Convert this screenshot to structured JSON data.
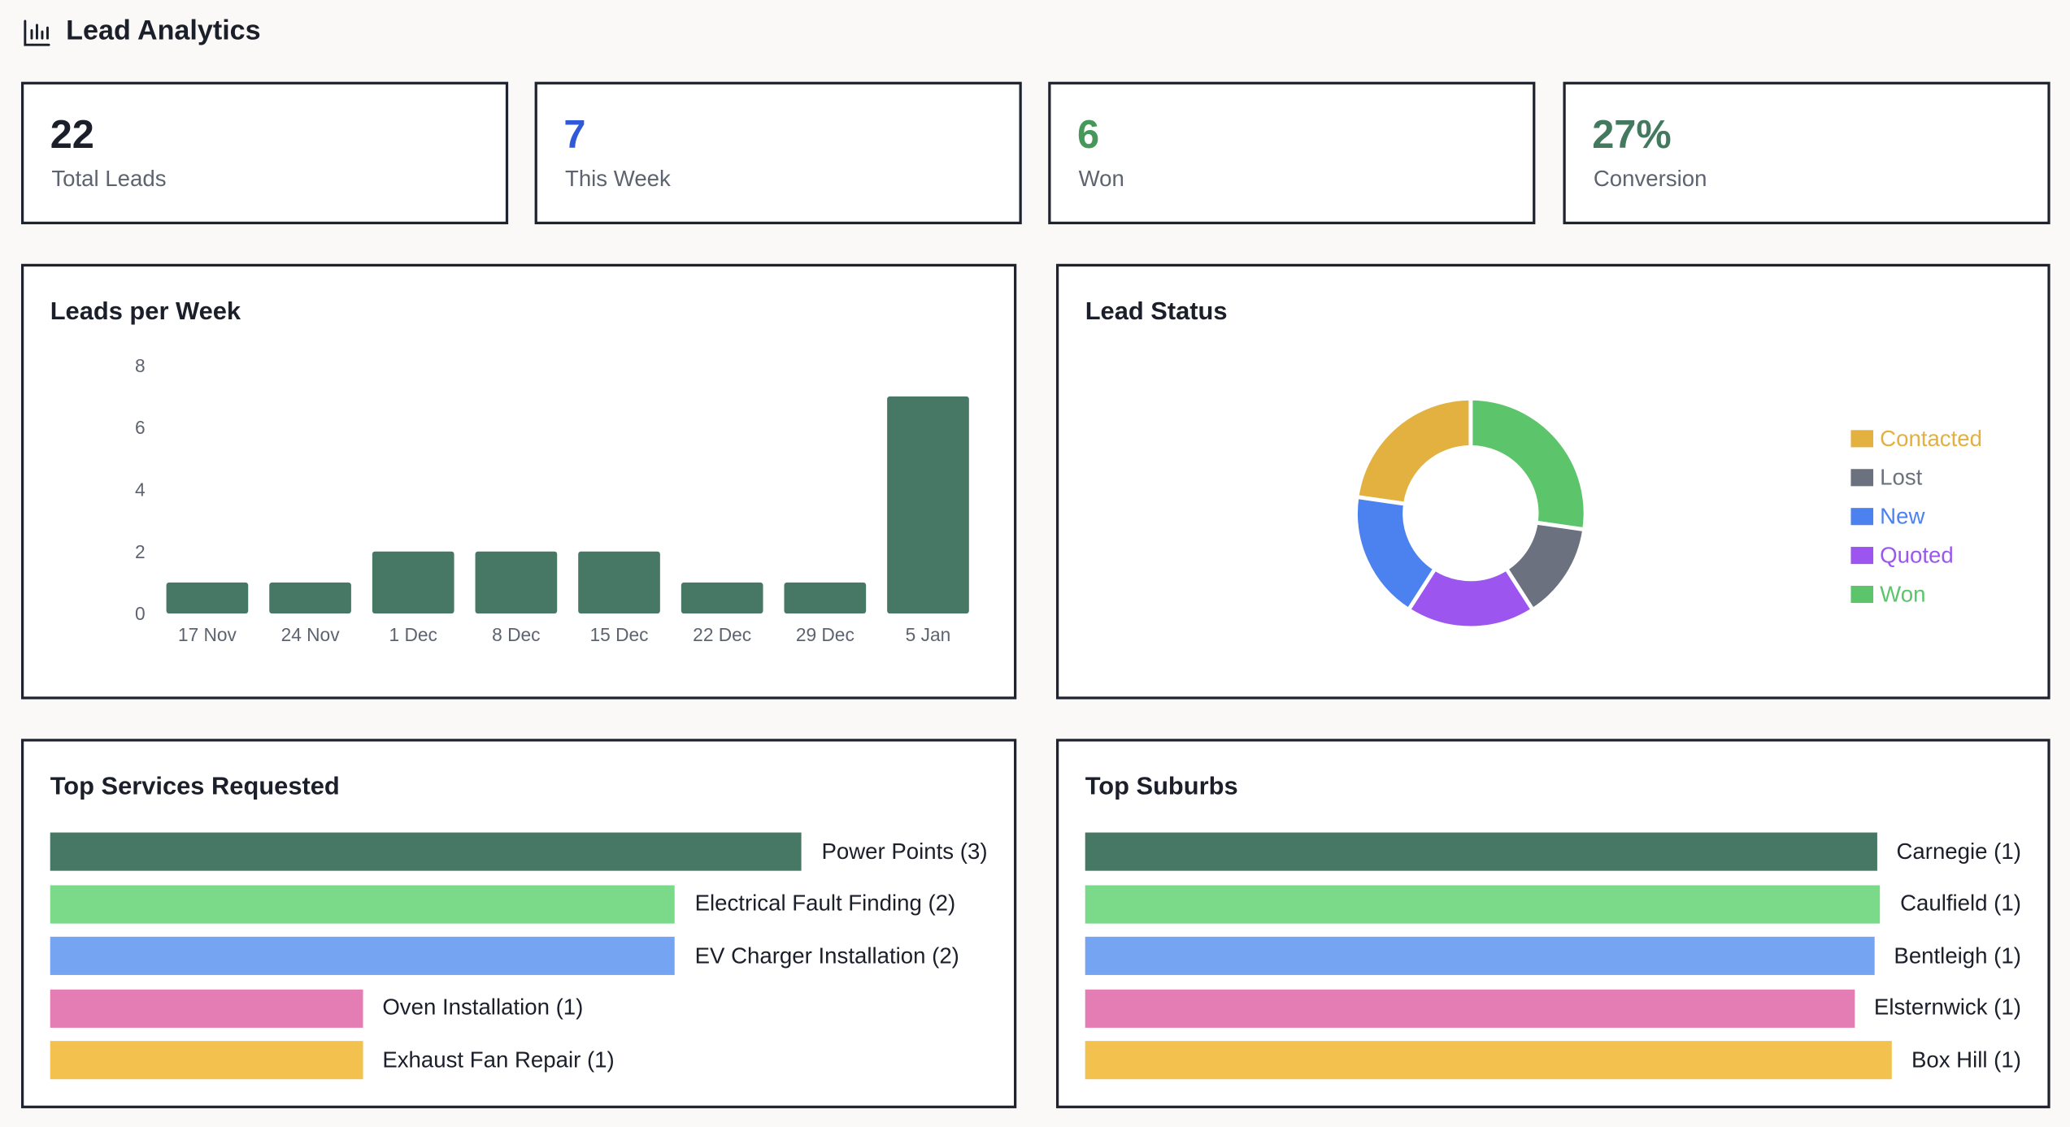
{
  "header": {
    "title": "Lead Analytics"
  },
  "stats": [
    {
      "value": "22",
      "label": "Total Leads",
      "color": "#1b1f2a"
    },
    {
      "value": "7",
      "label": "This Week",
      "color": "#3158d8"
    },
    {
      "value": "6",
      "label": "Won",
      "color": "#45985a"
    },
    {
      "value": "27%",
      "label": "Conversion",
      "color": "#437a5f"
    }
  ],
  "chart_data": [
    {
      "type": "bar",
      "title": "Leads per Week",
      "categories": [
        "17 Nov",
        "24 Nov",
        "1 Dec",
        "8 Dec",
        "15 Dec",
        "22 Dec",
        "29 Dec",
        "5 Jan"
      ],
      "values": [
        1,
        1,
        2,
        2,
        2,
        1,
        1,
        7
      ],
      "color": "#477865",
      "ylim": [
        0,
        8
      ],
      "yticks": [
        0,
        2,
        4,
        6,
        8
      ],
      "grid": false
    },
    {
      "type": "donut",
      "title": "Lead Status",
      "categories": [
        "Contacted",
        "Lost",
        "New",
        "Quoted",
        "Won"
      ],
      "values": [
        5,
        3,
        4,
        4,
        6
      ],
      "colors": [
        "#e2b13f",
        "#6b717e",
        "#4b82f0",
        "#9c56ef",
        "#5cc46b"
      ],
      "legend": "right"
    },
    {
      "type": "hbar",
      "title": "Top Services Requested",
      "categories": [
        "Power Points (3)",
        "Electrical Fault Finding (2)",
        "EV Charger Installation (2)",
        "Oven Installation (1)",
        "Exhaust Fan Repair (1)"
      ],
      "values": [
        3,
        2,
        2,
        1,
        1
      ],
      "colors": [
        "#477865",
        "#7ada8a",
        "#74a4f2",
        "#e57db5",
        "#f2c14e"
      ]
    },
    {
      "type": "hbar",
      "title": "Top Suburbs",
      "categories": [
        "Carnegie (1)",
        "Caulfield (1)",
        "Bentleigh (1)",
        "Elsternwick (1)",
        "Box Hill (1)"
      ],
      "values": [
        1,
        1,
        1,
        1,
        1
      ],
      "colors": [
        "#477865",
        "#7ada8a",
        "#74a4f2",
        "#e57db5",
        "#f2c14e"
      ]
    }
  ]
}
